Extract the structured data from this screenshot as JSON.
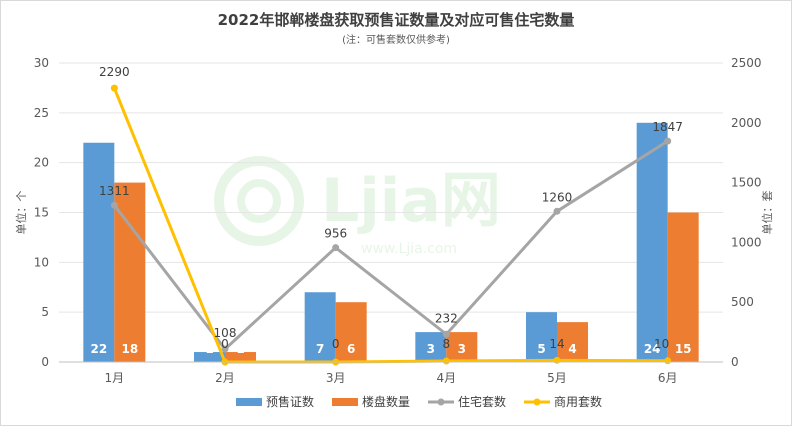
{
  "title": "2022年邯郸楼盘获取预售证数量及对应可售住宅数量",
  "subtitle": "(注：可售套数仅供参考)",
  "watermark": {
    "text": "Ljia网",
    "url": "www.Ljia.com"
  },
  "colors": {
    "presale": "#5B9BD5",
    "projects": "#ED7D31",
    "residential": "#A5A5A5",
    "commercial": "#FFC000"
  },
  "chart_data": {
    "type": "bar",
    "categories": [
      "1月",
      "2月",
      "3月",
      "4月",
      "5月",
      "6月"
    ],
    "series": [
      {
        "name": "预售证数",
        "kind": "bar",
        "axis": "left",
        "values": [
          22,
          1,
          7,
          3,
          5,
          24
        ]
      },
      {
        "name": "楼盘数量",
        "kind": "bar",
        "axis": "left",
        "values": [
          18,
          1,
          6,
          3,
          4,
          15
        ]
      },
      {
        "name": "住宅套数",
        "kind": "line",
        "axis": "right",
        "values": [
          1311,
          108,
          956,
          232,
          1260,
          1847
        ]
      },
      {
        "name": "商用套数",
        "kind": "line",
        "axis": "right",
        "values": [
          2290,
          0,
          0,
          8,
          14,
          10
        ]
      }
    ],
    "ylabel": "单位：个",
    "y2label": "单位：套",
    "ylim": [
      0,
      30
    ],
    "y2lim": [
      0,
      2500
    ],
    "yticks": [
      "0",
      "5",
      "10",
      "15",
      "20",
      "25",
      "30"
    ],
    "y2ticks": [
      "0",
      "500",
      "1000",
      "1500",
      "2000",
      "2500"
    ],
    "grid": true,
    "legend_position": "bottom"
  }
}
